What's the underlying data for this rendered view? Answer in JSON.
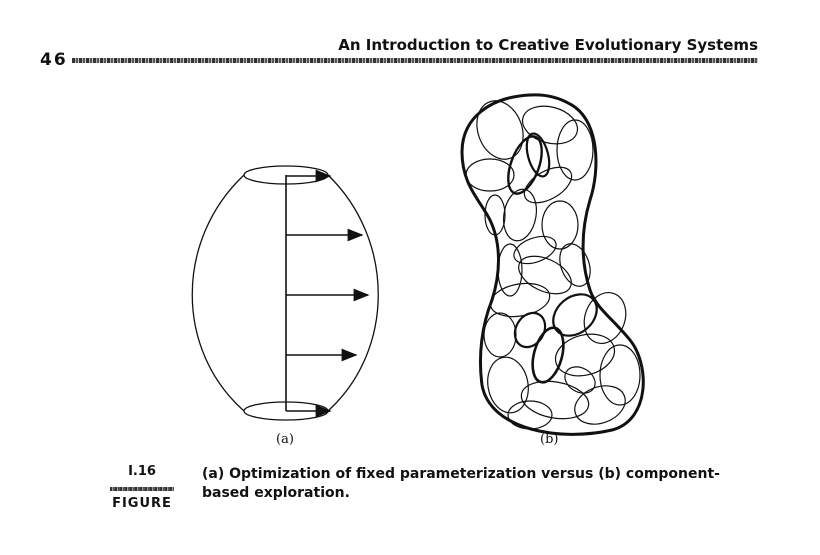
{
  "header": {
    "page_number": "46",
    "running_title": "An Introduction to Creative Evolutionary Systems"
  },
  "figure": {
    "panel_a_label": "(a)",
    "panel_b_label": "(b)",
    "number": "I.16",
    "word": "FIGURE",
    "caption": "(a) Optimization of fixed parameterization versus (b) component-based exploration."
  }
}
